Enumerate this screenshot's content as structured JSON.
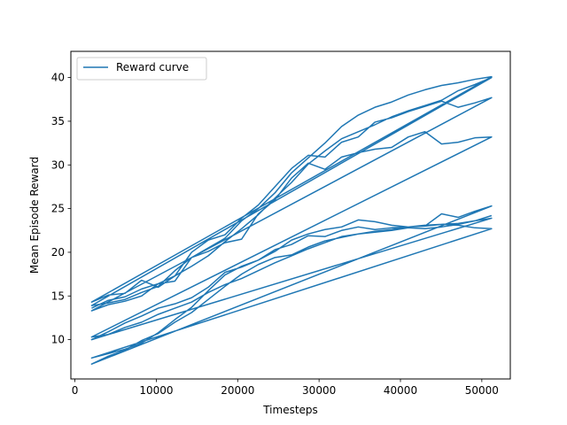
{
  "chart_data": {
    "type": "line",
    "title": "",
    "xlabel": "Timesteps",
    "ylabel": "Mean Episode Reward",
    "xlim": [
      -500,
      53500
    ],
    "ylim": [
      5.5,
      43
    ],
    "x_ticks": [
      0,
      10000,
      20000,
      30000,
      40000,
      50000
    ],
    "x_tick_labels": [
      "0",
      "10000",
      "20000",
      "30000",
      "40000",
      "50000"
    ],
    "y_ticks": [
      10,
      15,
      20,
      25,
      30,
      35,
      40
    ],
    "y_tick_labels": [
      "10",
      "15",
      "20",
      "25",
      "30",
      "35",
      "40"
    ],
    "grid": false,
    "legend": {
      "position": "top-left",
      "entries": [
        "Reward curve"
      ]
    },
    "color": "#1f77b4",
    "series": [
      {
        "name": "Reward curve",
        "x": [
          2048,
          4096,
          6144,
          8192,
          10240,
          12288,
          14336,
          16384,
          18432,
          20480,
          22528,
          24576,
          26624,
          28672,
          30720,
          32768,
          34816,
          36864,
          38912,
          40960,
          43008,
          45056,
          47104,
          49152,
          51200,
          2048,
          4096,
          6144,
          8192,
          10240,
          12288,
          14336,
          16384,
          18432,
          20480,
          22528,
          24576,
          26624,
          28672,
          30720,
          32768,
          34816,
          36864,
          38912,
          40960,
          43008,
          45056,
          47104,
          49152,
          51200,
          2048,
          4096,
          6144,
          8192,
          10240,
          12288,
          14336,
          16384,
          18432,
          20480,
          22528,
          24576,
          26624,
          28672,
          30720,
          32768,
          34816,
          36864,
          38912,
          40960,
          43008,
          45056,
          47104,
          49152,
          51200,
          2048,
          4096,
          6144,
          8192,
          10240,
          12288,
          14336,
          16384,
          18432,
          20480,
          22528,
          24576,
          26624,
          28672,
          30720,
          32768,
          34816,
          36864,
          38912,
          40960,
          43008,
          45056,
          47104,
          49152,
          51200,
          2048,
          4096,
          6144,
          8192,
          10240,
          12288,
          14336,
          16384,
          18432,
          20480,
          22528,
          24576,
          26624,
          28672,
          30720,
          32768,
          34816,
          36864,
          38912,
          40960,
          43008,
          45056,
          47104,
          49152,
          51200,
          2048,
          4096,
          6144,
          8192,
          10240,
          12288,
          14336,
          16384,
          18432,
          20480,
          22528,
          24576,
          26624,
          28672,
          30720,
          32768,
          34816,
          36864,
          38912,
          40960,
          43008,
          45056,
          47104,
          49152,
          51200,
          2048,
          4096,
          6144,
          8192,
          10240,
          12288,
          14336,
          16384,
          18432,
          20480,
          22528,
          24576,
          26624,
          28672,
          30720,
          32768,
          34816,
          36864,
          38912,
          40960,
          43008,
          45056,
          47104,
          49152,
          51200,
          2048,
          4096,
          6144,
          8192,
          10240,
          12288,
          14336,
          16384,
          18432,
          20480,
          22528,
          24576,
          26624,
          28672,
          30720,
          32768,
          34816,
          36864,
          38912,
          40960,
          43008,
          45056,
          47104,
          49152,
          51200
        ],
        "y": [
          13.6,
          14.5,
          14.9,
          15.8,
          16.4,
          17.3,
          18.4,
          19.6,
          21.2,
          22.7,
          24.3,
          26.2,
          28.0,
          30.1,
          31.6,
          33.0,
          33.8,
          34.6,
          35.5,
          36.2,
          36.8,
          37.4,
          38.5,
          39.2,
          40.0,
          13.9,
          14.2,
          14.6,
          15.4,
          16.1,
          17.9,
          19.4,
          20.5,
          21.6,
          23.6,
          25.0,
          26.8,
          29.1,
          30.8,
          32.5,
          34.4,
          35.7,
          36.6,
          37.2,
          38.0,
          38.6,
          39.1,
          39.4,
          39.8,
          40.1,
          14.3,
          15.1,
          15.3,
          16.8,
          16.0,
          17.3,
          20.0,
          21.4,
          22.0,
          23.9,
          25.4,
          27.5,
          29.6,
          31.1,
          30.9,
          32.6,
          33.2,
          34.9,
          35.4,
          36.1,
          36.7,
          37.3,
          36.6,
          37.1,
          37.7,
          13.3,
          14.0,
          14.4,
          15.0,
          16.4,
          16.7,
          19.4,
          20.1,
          21.1,
          21.5,
          24.4,
          26.0,
          28.5,
          30.2,
          29.5,
          30.9,
          31.4,
          31.8,
          32.0,
          33.2,
          33.8,
          32.4,
          32.6,
          33.1,
          33.2,
          10.3,
          10.6,
          11.4,
          12.0,
          12.9,
          13.6,
          14.3,
          15.4,
          16.3,
          17.0,
          17.9,
          18.8,
          19.6,
          20.4,
          21.1,
          21.8,
          22.1,
          22.4,
          22.6,
          22.9,
          23.1,
          23.2,
          23.3,
          23.6,
          23.9,
          10.0,
          10.9,
          11.9,
          12.7,
          13.6,
          14.1,
          14.8,
          16.0,
          17.7,
          18.3,
          19.1,
          20.1,
          21.4,
          22.1,
          22.6,
          22.9,
          23.7,
          23.5,
          23.1,
          22.9,
          23.0,
          23.2,
          23.1,
          22.8,
          22.7,
          7.9,
          8.4,
          8.9,
          9.6,
          10.8,
          12.3,
          13.7,
          15.6,
          17.4,
          18.4,
          19.1,
          20.3,
          20.9,
          21.9,
          21.8,
          22.5,
          22.9,
          22.6,
          22.8,
          22.9,
          23.0,
          24.4,
          24.0,
          24.7,
          25.3,
          7.2,
          8.1,
          8.8,
          9.9,
          10.7,
          12.0,
          13.1,
          14.6,
          16.1,
          17.5,
          18.6,
          19.4,
          19.7,
          20.6,
          21.3,
          21.7,
          22.1,
          22.3,
          22.5,
          22.8,
          22.7,
          22.9,
          23.2,
          23.6,
          24.2
        ]
      }
    ]
  }
}
